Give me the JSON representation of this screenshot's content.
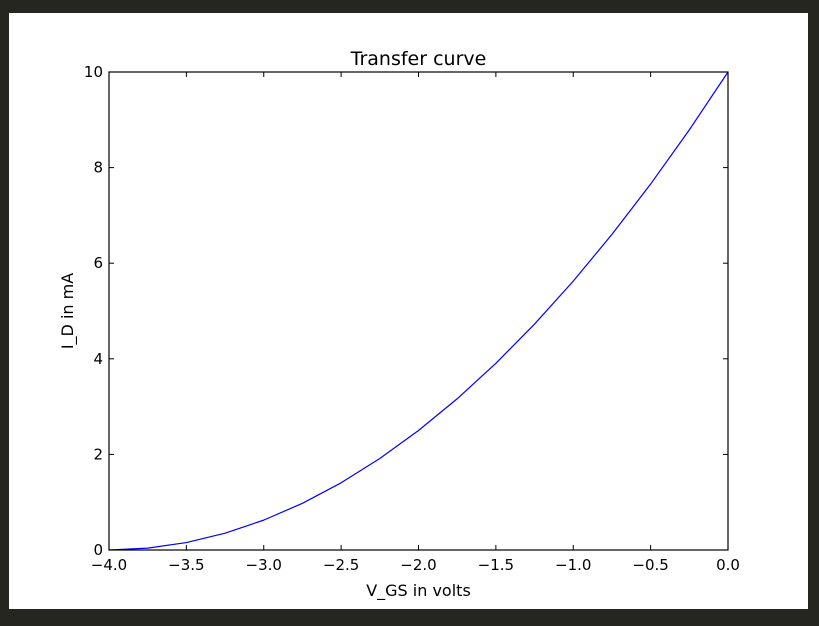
{
  "chart_data": {
    "type": "line",
    "title": "Transfer curve",
    "xlabel": "V_GS in volts",
    "ylabel": "I_D in mA",
    "xlim": [
      -4.0,
      0.0
    ],
    "ylim": [
      0,
      10
    ],
    "xticks": [
      "−4.0",
      "−3.5",
      "−3.0",
      "−2.5",
      "−2.0",
      "−1.5",
      "−1.0",
      "−0.5",
      "0.0"
    ],
    "xtick_values": [
      -4.0,
      -3.5,
      -3.0,
      -2.5,
      -2.0,
      -1.5,
      -1.0,
      -0.5,
      0.0
    ],
    "yticks": [
      "0",
      "2",
      "4",
      "6",
      "8",
      "10"
    ],
    "ytick_values": [
      0,
      2,
      4,
      6,
      8,
      10
    ],
    "grid": false,
    "series": [
      {
        "color": "#0000ff",
        "x": [
          -4.0,
          -3.75,
          -3.5,
          -3.25,
          -3.0,
          -2.75,
          -2.5,
          -2.25,
          -2.0,
          -1.75,
          -1.5,
          -1.25,
          -1.0,
          -0.75,
          -0.5,
          -0.25,
          0.0
        ],
        "y": [
          0.0,
          0.039,
          0.156,
          0.352,
          0.625,
          0.977,
          1.406,
          1.914,
          2.5,
          3.164,
          3.906,
          4.727,
          5.625,
          6.602,
          7.656,
          8.789,
          10.0
        ]
      }
    ]
  }
}
